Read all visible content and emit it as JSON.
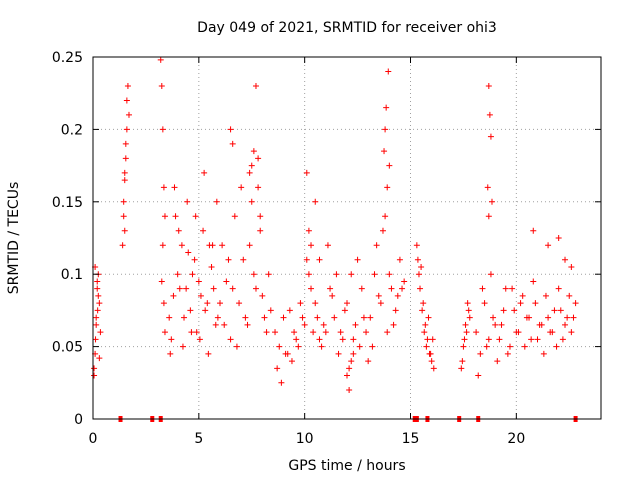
{
  "chart_data": {
    "type": "scatter",
    "title": "Day 049 of 2021, SRMTID for receiver ohi3",
    "xlabel": "GPS time / hours",
    "ylabel": "SRMTID / TECUs",
    "xlim": [
      0,
      24
    ],
    "ylim": [
      0,
      0.25
    ],
    "x_ticks": [
      0,
      5,
      10,
      15,
      20
    ],
    "x_tick_labels": [
      "0",
      "5",
      "10",
      "15",
      "20"
    ],
    "y_ticks": [
      0,
      0.05,
      0.1,
      0.15,
      0.2,
      0.25
    ],
    "y_tick_labels": [
      "0",
      "0.05",
      "0.1",
      "0.15",
      "0.2",
      "0.25"
    ],
    "grid": true,
    "marker": "+",
    "series_color": "#ff0000",
    "series": [
      {
        "name": "SRMTID",
        "x": [
          0.05,
          0.1,
          0.15,
          0.2,
          0.25,
          0.3,
          0.35,
          0.1,
          0.2,
          0.3,
          0.05,
          0.15,
          0.25,
          0.12,
          0.22,
          1.4,
          1.45,
          1.5,
          1.55,
          1.6,
          1.65,
          1.5,
          1.55,
          1.6,
          1.45,
          1.7,
          1.5,
          3.2,
          3.25,
          3.3,
          3.35,
          3.4,
          3.3,
          3.25,
          3.35,
          3.4,
          3.6,
          3.8,
          4.0,
          4.2,
          4.4,
          4.6,
          4.8,
          5.0,
          5.2,
          5.4,
          5.6,
          5.8,
          3.7,
          3.9,
          4.1,
          4.3,
          4.5,
          4.7,
          4.9,
          5.1,
          5.3,
          5.5,
          5.7,
          5.9,
          3.65,
          3.85,
          4.05,
          4.25,
          4.45,
          4.65,
          4.85,
          5.05,
          5.25,
          5.45,
          5.65,
          5.85,
          6.0,
          6.2,
          6.4,
          6.6,
          6.8,
          7.0,
          7.2,
          7.4,
          7.6,
          7.8,
          8.0,
          8.2,
          8.4,
          6.1,
          6.3,
          6.5,
          6.7,
          6.9,
          7.1,
          7.3,
          7.5,
          7.7,
          7.9,
          8.1,
          8.3,
          6.5,
          6.6,
          7.5,
          7.6,
          7.7,
          7.4,
          7.8,
          7.9,
          8.6,
          8.8,
          9.0,
          9.2,
          9.4,
          9.6,
          9.8,
          10.0,
          10.2,
          10.4,
          10.6,
          10.8,
          8.7,
          8.9,
          9.1,
          9.3,
          9.5,
          9.7,
          9.9,
          10.1,
          10.3,
          10.5,
          10.7,
          10.9,
          10.1,
          10.2,
          10.3,
          10.5,
          10.7,
          11.0,
          11.2,
          11.4,
          11.6,
          11.8,
          12.0,
          12.2,
          12.4,
          12.6,
          12.8,
          13.0,
          11.1,
          11.3,
          11.5,
          11.7,
          11.9,
          12.1,
          12.3,
          12.5,
          12.7,
          12.9,
          12.0,
          12.1,
          12.2,
          12.3,
          13.1,
          13.3,
          13.5,
          13.7,
          13.9,
          14.1,
          14.3,
          14.5,
          14.7,
          13.2,
          13.4,
          13.6,
          13.8,
          14.0,
          14.2,
          14.4,
          14.6,
          13.8,
          13.9,
          14.0,
          13.85,
          13.95,
          13.75,
          15.3,
          15.4,
          15.5,
          15.6,
          15.7,
          15.8,
          15.9,
          16.0,
          16.1,
          15.35,
          15.45,
          15.55,
          15.65,
          15.75,
          15.85,
          15.95,
          16.05,
          17.4,
          17.5,
          17.6,
          17.7,
          17.8,
          17.45,
          17.55,
          17.65,
          17.75,
          18.1,
          18.3,
          18.5,
          18.7,
          18.9,
          19.1,
          19.3,
          19.5,
          19.7,
          19.9,
          20.1,
          20.3,
          20.5,
          20.7,
          20.9,
          21.1,
          21.3,
          21.5,
          21.7,
          21.9,
          22.1,
          22.3,
          22.5,
          22.7,
          18.2,
          18.4,
          18.6,
          18.8,
          19.0,
          19.2,
          19.4,
          19.6,
          19.8,
          20.0,
          20.2,
          20.4,
          20.6,
          20.8,
          21.0,
          21.2,
          21.4,
          21.6,
          21.8,
          22.0,
          22.2,
          22.4,
          22.6,
          22.8,
          18.7,
          18.75,
          18.8,
          18.65,
          18.85,
          18.7,
          20.8,
          21.5,
          22.0,
          22.3,
          22.6
        ],
        "y": [
          0.03,
          0.045,
          0.07,
          0.09,
          0.1,
          0.08,
          0.06,
          0.105,
          0.095,
          0.042,
          0.035,
          0.065,
          0.085,
          0.055,
          0.075,
          0.12,
          0.15,
          0.17,
          0.19,
          0.22,
          0.23,
          0.165,
          0.18,
          0.2,
          0.14,
          0.21,
          0.13,
          0.248,
          0.23,
          0.2,
          0.16,
          0.14,
          0.12,
          0.095,
          0.08,
          0.06,
          0.07,
          0.085,
          0.1,
          0.12,
          0.09,
          0.075,
          0.11,
          0.095,
          0.13,
          0.08,
          0.105,
          0.065,
          0.055,
          0.14,
          0.09,
          0.07,
          0.115,
          0.1,
          0.06,
          0.085,
          0.075,
          0.12,
          0.09,
          0.07,
          0.045,
          0.16,
          0.13,
          0.05,
          0.15,
          0.06,
          0.14,
          0.055,
          0.17,
          0.045,
          0.12,
          0.15,
          0.08,
          0.065,
          0.11,
          0.09,
          0.05,
          0.16,
          0.07,
          0.12,
          0.1,
          0.18,
          0.085,
          0.06,
          0.075,
          0.12,
          0.095,
          0.055,
          0.14,
          0.08,
          0.11,
          0.065,
          0.15,
          0.09,
          0.13,
          0.07,
          0.1,
          0.2,
          0.19,
          0.175,
          0.185,
          0.23,
          0.17,
          0.16,
          0.14,
          0.06,
          0.05,
          0.07,
          0.045,
          0.04,
          0.055,
          0.08,
          0.065,
          0.1,
          0.06,
          0.07,
          0.05,
          0.035,
          0.025,
          0.045,
          0.075,
          0.06,
          0.05,
          0.07,
          0.11,
          0.09,
          0.08,
          0.055,
          0.065,
          0.17,
          0.13,
          0.12,
          0.15,
          0.11,
          0.06,
          0.09,
          0.07,
          0.045,
          0.055,
          0.08,
          0.1,
          0.065,
          0.05,
          0.07,
          0.04,
          0.12,
          0.085,
          0.1,
          0.06,
          0.075,
          0.035,
          0.045,
          0.11,
          0.09,
          0.06,
          0.03,
          0.02,
          0.04,
          0.055,
          0.07,
          0.1,
          0.085,
          0.13,
          0.06,
          0.09,
          0.075,
          0.11,
          0.095,
          0.05,
          0.12,
          0.08,
          0.14,
          0.1,
          0.065,
          0.085,
          0.09,
          0.2,
          0.16,
          0.175,
          0.215,
          0.24,
          0.185,
          0.12,
          0.1,
          0.105,
          0.08,
          0.065,
          0.055,
          0.045,
          0.04,
          0.035,
          0.11,
          0.09,
          0.075,
          0.06,
          0.05,
          0.07,
          0.045,
          0.055,
          0.035,
          0.05,
          0.065,
          0.08,
          0.07,
          0.04,
          0.055,
          0.06,
          0.075,
          0.06,
          0.045,
          0.08,
          0.055,
          0.07,
          0.04,
          0.065,
          0.09,
          0.05,
          0.075,
          0.06,
          0.085,
          0.07,
          0.055,
          0.08,
          0.065,
          0.045,
          0.07,
          0.06,
          0.05,
          0.075,
          0.065,
          0.085,
          0.07,
          0.03,
          0.09,
          0.05,
          0.1,
          0.065,
          0.055,
          0.075,
          0.045,
          0.09,
          0.06,
          0.08,
          0.05,
          0.07,
          0.095,
          0.055,
          0.065,
          0.085,
          0.06,
          0.075,
          0.09,
          0.055,
          0.07,
          0.06,
          0.08,
          0.23,
          0.21,
          0.195,
          0.16,
          0.15,
          0.14,
          0.13,
          0.12,
          0.125,
          0.11,
          0.105
        ]
      }
    ],
    "gap_markers_x": [
      1.3,
      2.8,
      3.2,
      15.2,
      15.3,
      15.8,
      17.3,
      18.2,
      22.8
    ],
    "gap_markers_y": 0
  }
}
